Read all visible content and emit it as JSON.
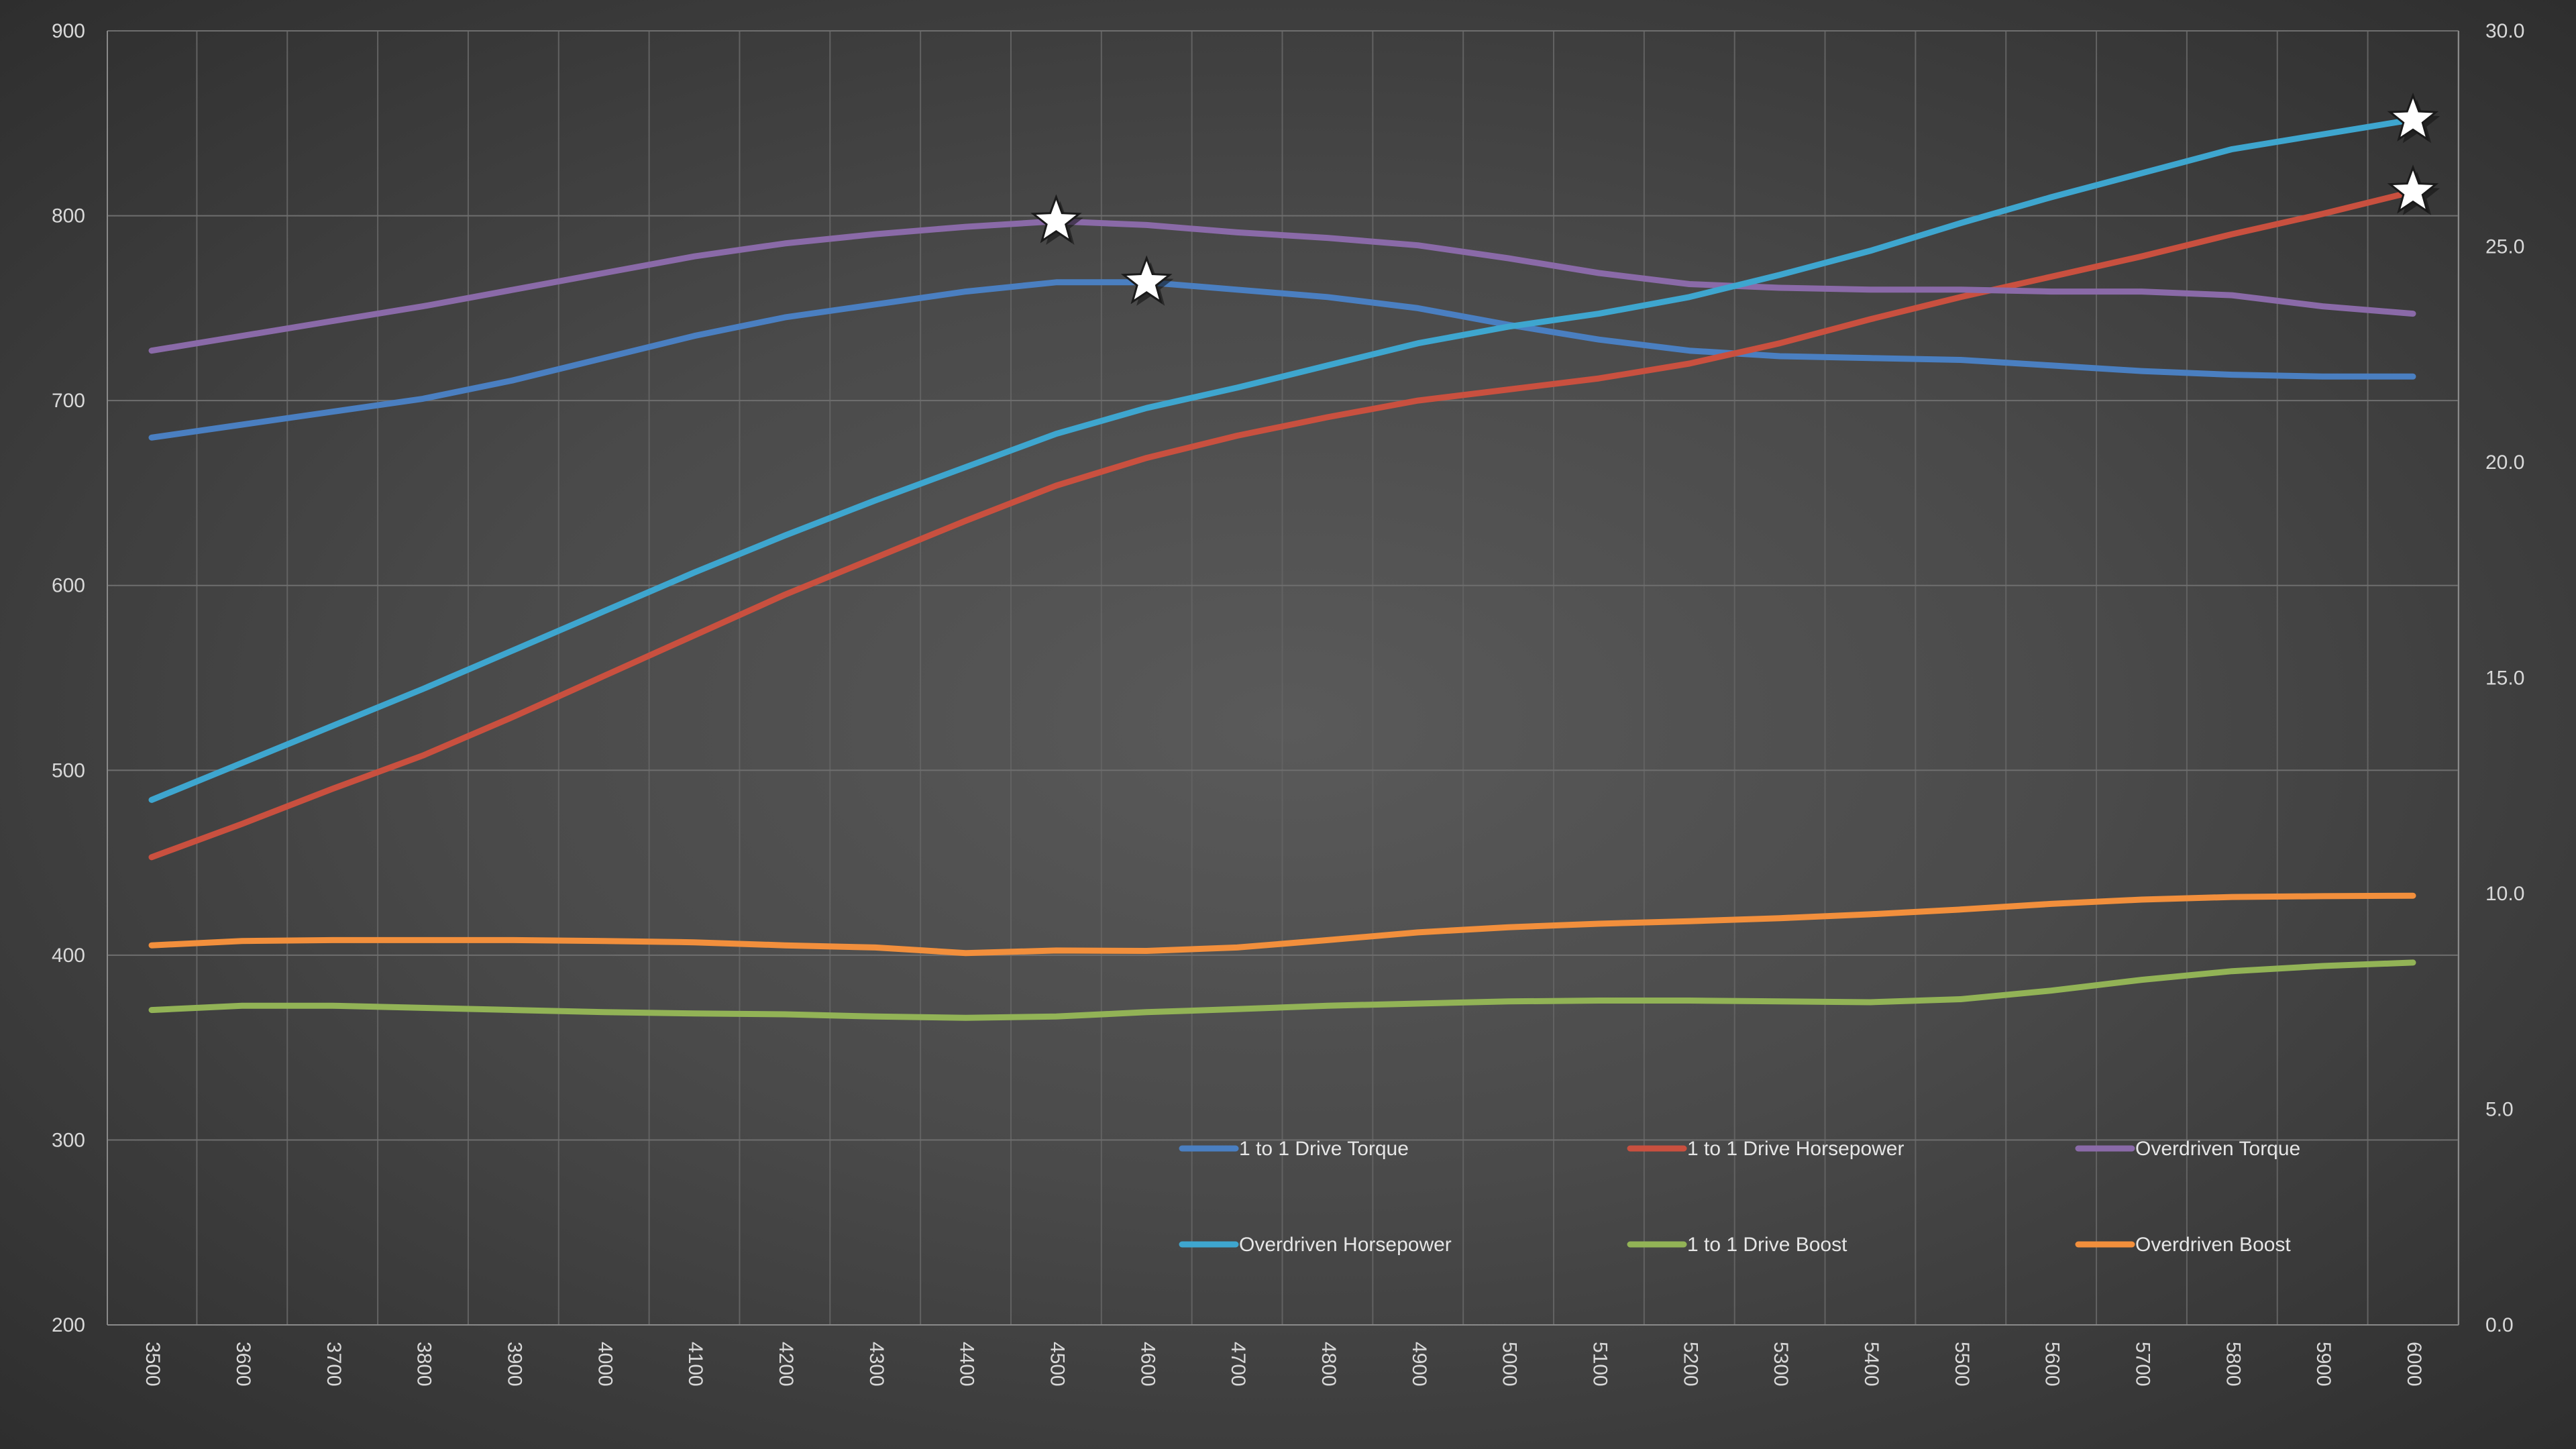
{
  "chart_data": {
    "type": "line",
    "x": [
      3500,
      3600,
      3700,
      3800,
      3900,
      4000,
      4100,
      4200,
      4300,
      4400,
      4500,
      4600,
      4700,
      4800,
      4900,
      5000,
      5100,
      5200,
      5300,
      5400,
      5500,
      5600,
      5700,
      5800,
      5900,
      6000
    ],
    "x_tick_labels": [
      "3500",
      "3600",
      "3700",
      "3800",
      "3900",
      "4000",
      "4100",
      "4200",
      "4300",
      "4400",
      "4500",
      "4600",
      "4700",
      "4800",
      "4900",
      "5000",
      "5100",
      "5200",
      "5300",
      "5400",
      "5500",
      "5600",
      "5700",
      "5800",
      "5900",
      "6000"
    ],
    "ylim": [
      200,
      900
    ],
    "y_ticks": [
      200,
      300,
      400,
      500,
      600,
      700,
      800,
      900
    ],
    "y_tick_labels": [
      "200",
      "300",
      "400",
      "500",
      "600",
      "700",
      "800",
      "900"
    ],
    "y2lim": [
      0,
      30
    ],
    "y2_ticks": [
      0,
      5,
      10,
      15,
      20,
      25,
      30
    ],
    "y2_tick_labels": [
      "0.0",
      "5.0",
      "10.0",
      "15.0",
      "20.0",
      "25.0",
      "30.0"
    ],
    "grid": true,
    "legend_position": "bottom-right",
    "series": [
      {
        "name": "1 to 1 Drive Torque",
        "axis": "left",
        "color": "#4a7fc1",
        "values": [
          680,
          687,
          694,
          701,
          711,
          723,
          735,
          745,
          752,
          759,
          764,
          764,
          760,
          756,
          750,
          741,
          733,
          727,
          724,
          723,
          722,
          719,
          716,
          714,
          713,
          713
        ]
      },
      {
        "name": "1 to 1 Drive Horsepower",
        "axis": "left",
        "color": "#c9503f",
        "values": [
          453,
          471,
          490,
          508,
          529,
          551,
          573,
          595,
          615,
          635,
          654,
          669,
          681,
          691,
          700,
          706,
          712,
          720,
          731,
          744,
          756,
          767,
          778,
          790,
          801,
          813
        ]
      },
      {
        "name": "Overdriven Torque",
        "axis": "left",
        "color": "#8a6aa8",
        "values": [
          727,
          735,
          743,
          751,
          760,
          769,
          778,
          785,
          790,
          794,
          797,
          795,
          791,
          788,
          784,
          777,
          769,
          763,
          761,
          760,
          760,
          759,
          759,
          757,
          751,
          747
        ]
      },
      {
        "name": "Overdriven Horsepower",
        "axis": "left",
        "color": "#3ea6cf",
        "values": [
          484,
          504,
          524,
          544,
          565,
          586,
          607,
          627,
          646,
          664,
          682,
          696,
          707,
          719,
          731,
          740,
          747,
          756,
          768,
          781,
          796,
          810,
          823,
          836,
          844,
          852
        ]
      },
      {
        "name": "1 to 1 Drive Boost",
        "axis": "right",
        "color": "#92b356",
        "values": [
          7.3,
          7.4,
          7.4,
          7.35,
          7.3,
          7.25,
          7.22,
          7.2,
          7.15,
          7.12,
          7.15,
          7.25,
          7.32,
          7.4,
          7.45,
          7.5,
          7.52,
          7.52,
          7.5,
          7.48,
          7.55,
          7.75,
          8.0,
          8.2,
          8.32,
          8.4
        ]
      },
      {
        "name": "Overdriven Boost",
        "axis": "right",
        "color": "#f28f3c",
        "values": [
          8.8,
          8.9,
          8.92,
          8.92,
          8.92,
          8.9,
          8.87,
          8.8,
          8.75,
          8.62,
          8.68,
          8.67,
          8.75,
          8.92,
          9.1,
          9.22,
          9.3,
          9.36,
          9.43,
          9.52,
          9.63,
          9.76,
          9.86,
          9.92,
          9.94,
          9.95
        ]
      }
    ],
    "annotations": [
      {
        "shape": "star",
        "series": "Overdriven Torque",
        "x": 4500,
        "y": 797
      },
      {
        "shape": "star",
        "series": "1 to 1 Drive Torque",
        "x": 4600,
        "y": 764
      },
      {
        "shape": "star",
        "series": "Overdriven Horsepower",
        "x": 6000,
        "y": 852
      },
      {
        "shape": "star",
        "series": "1 to 1 Drive Horsepower",
        "x": 6000,
        "y": 813
      }
    ]
  }
}
